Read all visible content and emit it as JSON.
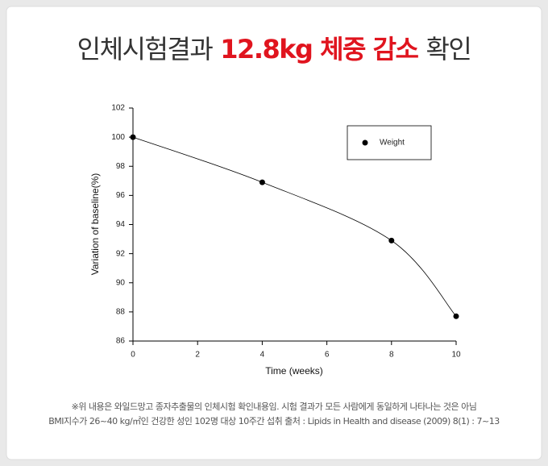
{
  "header": {
    "title_prefix": "인체시험결과",
    "title_highlight": "12.8kg 체중 감소",
    "title_suffix": "확인"
  },
  "chart_data": {
    "type": "line",
    "x": [
      0,
      4,
      8,
      10
    ],
    "series": [
      {
        "name": "Weight",
        "color": "#000000",
        "values": [
          100,
          96.9,
          92.9,
          87.7
        ]
      }
    ],
    "xlabel": "Time (weeks)",
    "ylabel": "Variation of baseline(%)",
    "xlim": [
      0,
      10
    ],
    "xticks": [
      0,
      2,
      4,
      6,
      8,
      10
    ],
    "ylim": [
      86,
      102
    ],
    "yticks": [
      86,
      88,
      90,
      92,
      94,
      96,
      98,
      100,
      102
    ],
    "legend": "upper right"
  },
  "footnote": [
    "※위 내용은 와일드망고 종자추출물의 인체시험 확인내용임. 시험 결과가 모든 사람에게 동일하게 나타나는 것은 아님",
    "BMI지수가 26~40 kg/㎡인 건강한 성인 102명 대상 10주간 섭취  출처 : Lipids in Health and disease (2009) 8(1) : 7~13"
  ]
}
